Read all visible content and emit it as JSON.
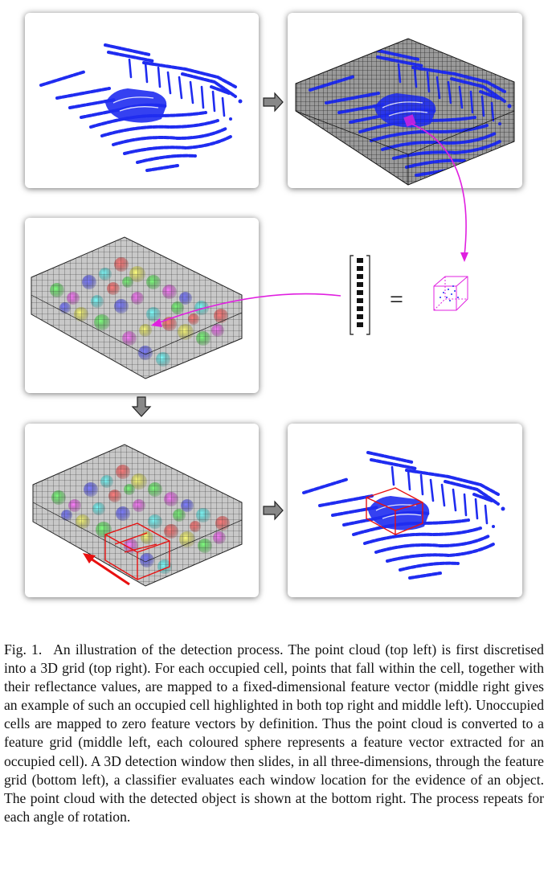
{
  "figure": {
    "panels": [
      {
        "id": "top-left",
        "content": "raw point cloud"
      },
      {
        "id": "top-right",
        "content": "point cloud discretised into 3D grid"
      },
      {
        "id": "middle-left",
        "content": "feature grid"
      },
      {
        "id": "bottom-left",
        "content": "feature grid with sliding detection window"
      },
      {
        "id": "bottom-right",
        "content": "point cloud with detected object"
      }
    ],
    "equals_symbol": "=",
    "colors": {
      "points": "#1f2cf0",
      "highlight": "#e020e0",
      "window": "#e81010",
      "grid": "#222222"
    }
  },
  "caption": {
    "label": "Fig. 1.",
    "text": "An illustration of the detection process. The point cloud (top left) is first discretised into a 3D grid (top right). For each occupied cell, points that fall within the cell, together with their reflectance values, are mapped to a fixed-dimensional feature vector (middle right gives an example of such an occupied cell highlighted in both top right and middle left). Unoccupied cells are mapped to zero feature vectors by definition. Thus the point cloud is converted to a feature grid (middle left, each coloured sphere represents a feature vector extracted for an occupied cell). A 3D detection window then slides, in all three-dimensions, through the feature grid (bottom left), a classifier evaluates each window location for the evidence of an object. The point cloud with the detected object is shown at the bottom right. The process repeats for each angle of rotation."
  }
}
